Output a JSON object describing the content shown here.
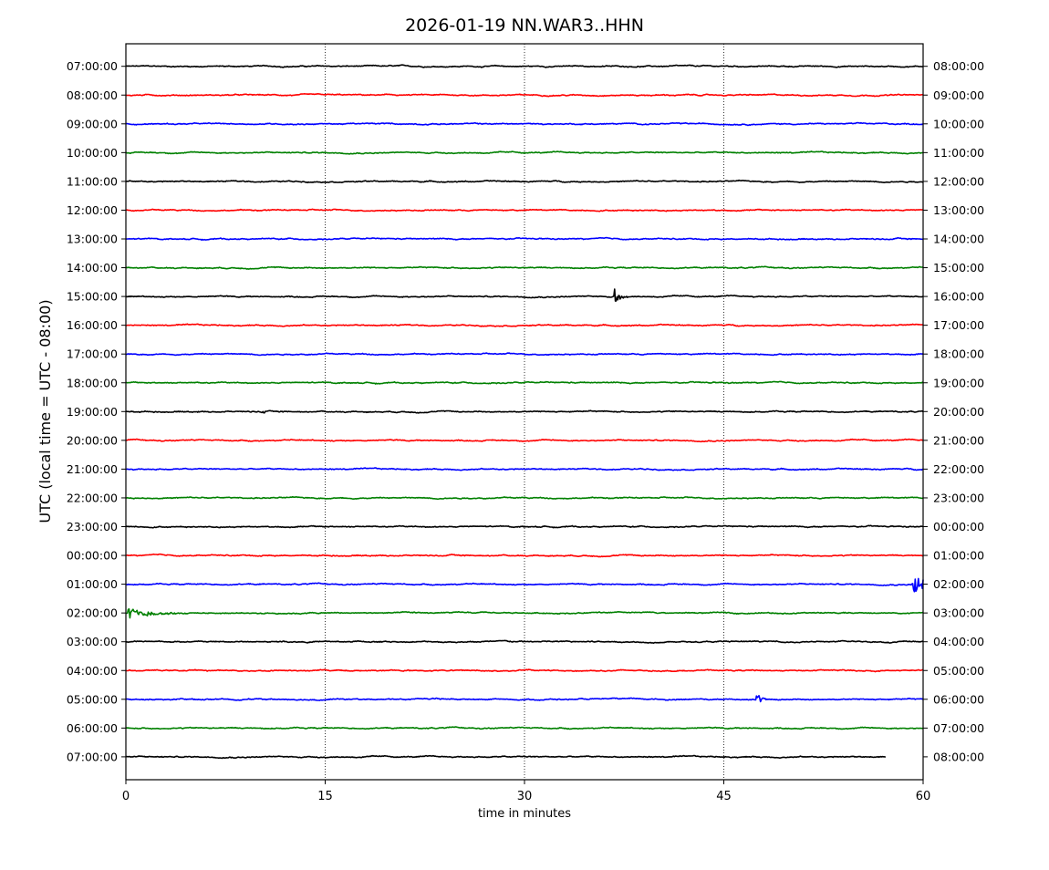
{
  "chart_data": {
    "type": "line",
    "title": "2026-01-19 NN.WAR3..HHN",
    "xlabel": "time in minutes",
    "ylabel": "UTC (local time = UTC - 08:00)",
    "xlim": [
      0,
      60
    ],
    "xticks": [
      0,
      15,
      30,
      45,
      60
    ],
    "xtick_labels": [
      "0",
      "15",
      "30",
      "45",
      "60"
    ],
    "grid": "vertical dotted at 15, 30, 45",
    "color_cycle": [
      "#000000",
      "#ff0000",
      "#0000ff",
      "#008000"
    ],
    "left_labels": [
      "07:00:00",
      "08:00:00",
      "09:00:00",
      "10:00:00",
      "11:00:00",
      "12:00:00",
      "13:00:00",
      "14:00:00",
      "15:00:00",
      "16:00:00",
      "17:00:00",
      "18:00:00",
      "19:00:00",
      "20:00:00",
      "21:00:00",
      "22:00:00",
      "23:00:00",
      "00:00:00",
      "01:00:00",
      "02:00:00",
      "03:00:00",
      "04:00:00",
      "05:00:00",
      "06:00:00",
      "07:00:00"
    ],
    "right_labels": [
      "08:00:00",
      "09:00:00",
      "10:00:00",
      "11:00:00",
      "12:00:00",
      "13:00:00",
      "14:00:00",
      "15:00:00",
      "16:00:00",
      "17:00:00",
      "18:00:00",
      "19:00:00",
      "20:00:00",
      "21:00:00",
      "22:00:00",
      "23:00:00",
      "00:00:00",
      "01:00:00",
      "02:00:00",
      "03:00:00",
      "04:00:00",
      "05:00:00",
      "06:00:00",
      "07:00:00",
      "08:00:00"
    ],
    "last_trace_end_minute": 57.2,
    "events": [
      {
        "row": 8,
        "minute": 36.8,
        "amplitude": 10,
        "duration_min": 1.0
      },
      {
        "row": 12,
        "minute": 10.3,
        "amplitude": 3,
        "duration_min": 0.5
      },
      {
        "row": 18,
        "minute": 59.3,
        "amplitude": 14,
        "duration_min": 2.2
      },
      {
        "row": 19,
        "minute": 0.2,
        "amplitude": 6,
        "duration_min": 4.5
      },
      {
        "row": 22,
        "minute": 47.5,
        "amplitude": 8,
        "duration_min": 1.0
      }
    ]
  }
}
